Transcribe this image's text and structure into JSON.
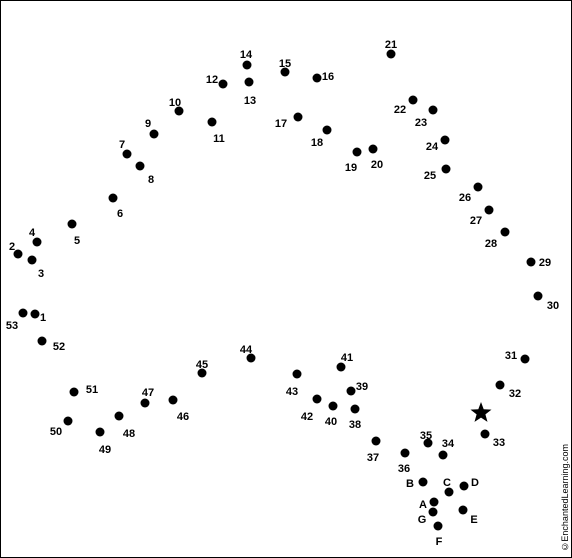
{
  "puzzle": {
    "start_marker": "star-icon",
    "dot_color": "#000000",
    "credit": "©EnchantedLearning.com",
    "points": [
      {
        "label": "1"
      },
      {
        "label": "2"
      },
      {
        "label": "3"
      },
      {
        "label": "4"
      },
      {
        "label": "5"
      },
      {
        "label": "6"
      },
      {
        "label": "7"
      },
      {
        "label": "8"
      },
      {
        "label": "9"
      },
      {
        "label": "10"
      },
      {
        "label": "11"
      },
      {
        "label": "12"
      },
      {
        "label": "13"
      },
      {
        "label": "14"
      },
      {
        "label": "15"
      },
      {
        "label": "16"
      },
      {
        "label": "17"
      },
      {
        "label": "18"
      },
      {
        "label": "19"
      },
      {
        "label": "20"
      },
      {
        "label": "21"
      },
      {
        "label": "22"
      },
      {
        "label": "23"
      },
      {
        "label": "24"
      },
      {
        "label": "25"
      },
      {
        "label": "26"
      },
      {
        "label": "27"
      },
      {
        "label": "28"
      },
      {
        "label": "29"
      },
      {
        "label": "30"
      },
      {
        "label": "31"
      },
      {
        "label": "32"
      },
      {
        "label": "33"
      },
      {
        "label": "34"
      },
      {
        "label": "35"
      },
      {
        "label": "36"
      },
      {
        "label": "37"
      },
      {
        "label": "38"
      },
      {
        "label": "39"
      },
      {
        "label": "40"
      },
      {
        "label": "41"
      },
      {
        "label": "42"
      },
      {
        "label": "43"
      },
      {
        "label": "44"
      },
      {
        "label": "45"
      },
      {
        "label": "46"
      },
      {
        "label": "47"
      },
      {
        "label": "48"
      },
      {
        "label": "49"
      },
      {
        "label": "50"
      },
      {
        "label": "51"
      },
      {
        "label": "52"
      },
      {
        "label": "53"
      },
      {
        "label": "A"
      },
      {
        "label": "B"
      },
      {
        "label": "C"
      },
      {
        "label": "D"
      },
      {
        "label": "E"
      },
      {
        "label": "F"
      },
      {
        "label": "G"
      }
    ]
  }
}
